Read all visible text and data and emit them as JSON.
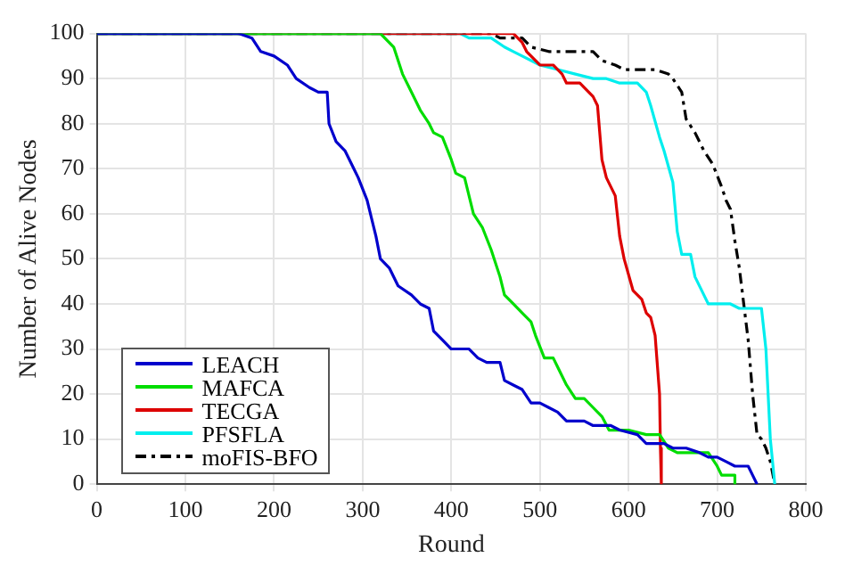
{
  "chart_data": {
    "type": "line",
    "xlabel": "Round",
    "ylabel": "Number of Alive Nodes",
    "xlim": [
      0,
      800
    ],
    "xticks": [
      0,
      100,
      200,
      300,
      400,
      500,
      600,
      700,
      800
    ],
    "ylim": [
      0,
      100
    ],
    "yticks": [
      0,
      10,
      20,
      30,
      40,
      50,
      60,
      70,
      80,
      90,
      100
    ],
    "grid": true,
    "legend": "bottom left",
    "marker": "none",
    "series": [
      {
        "name": "LEACH",
        "color": "#0000cc",
        "line_style": "solid",
        "x": [
          0,
          160,
          175,
          185,
          200,
          215,
          225,
          240,
          250,
          260,
          262,
          270,
          280,
          290,
          295,
          305,
          315,
          320,
          330,
          340,
          355,
          365,
          375,
          380,
          390,
          400,
          420,
          430,
          440,
          455,
          460,
          470,
          480,
          490,
          500,
          510,
          520,
          530,
          550,
          560,
          580,
          590,
          610,
          620,
          640,
          650,
          665,
          680,
          690,
          700,
          710,
          720,
          735,
          740,
          745
        ],
        "values": [
          100,
          100,
          99,
          96,
          95,
          93,
          90,
          88,
          87,
          87,
          80,
          76,
          74,
          70,
          68,
          63,
          55,
          50,
          48,
          44,
          42,
          40,
          39,
          34,
          32,
          30,
          30,
          28,
          27,
          27,
          23,
          22,
          21,
          18,
          18,
          17,
          16,
          14,
          14,
          13,
          13,
          12,
          11,
          9,
          9,
          8,
          8,
          7,
          6,
          6,
          5,
          4,
          4,
          2,
          0
        ]
      },
      {
        "name": "MAFCA",
        "color": "#00dd00",
        "line_style": "solid",
        "x": [
          0,
          320,
          335,
          345,
          355,
          365,
          375,
          380,
          390,
          400,
          405,
          415,
          425,
          435,
          445,
          455,
          460,
          470,
          480,
          490,
          495,
          505,
          515,
          520,
          530,
          540,
          550,
          560,
          570,
          578,
          600,
          620,
          635,
          645,
          655,
          690,
          700,
          705,
          720,
          720
        ],
        "values": [
          100,
          100,
          97,
          91,
          87,
          83,
          80,
          78,
          77,
          72,
          69,
          68,
          60,
          57,
          52,
          46,
          42,
          40,
          38,
          36,
          33,
          28,
          28,
          26,
          22,
          19,
          19,
          17,
          15,
          12,
          12,
          11,
          11,
          8,
          7,
          7,
          4,
          2,
          2,
          0
        ]
      },
      {
        "name": "TECGA",
        "color": "#dd0000",
        "line_style": "solid",
        "x": [
          0,
          470,
          480,
          485,
          495,
          500,
          515,
          525,
          530,
          545,
          560,
          565,
          570,
          575,
          585,
          590,
          595,
          605,
          615,
          620,
          625,
          630,
          635,
          636,
          637
        ],
        "values": [
          100,
          100,
          98,
          96,
          94,
          93,
          93,
          91,
          89,
          89,
          86,
          84,
          72,
          68,
          64,
          55,
          50,
          43,
          41,
          38,
          37,
          33,
          20,
          8,
          0
        ]
      },
      {
        "name": "PFSFLA",
        "color": "#00eeee",
        "line_style": "solid",
        "x": [
          0,
          410,
          420,
          445,
          460,
          470,
          480,
          500,
          520,
          540,
          560,
          575,
          590,
          610,
          620,
          625,
          635,
          640,
          650,
          655,
          660,
          670,
          675,
          685,
          690,
          715,
          725,
          750,
          755,
          760,
          765
        ],
        "values": [
          100,
          100,
          99,
          99,
          97,
          96,
          95,
          93,
          92,
          91,
          90,
          90,
          89,
          89,
          87,
          84,
          77,
          74,
          67,
          56,
          51,
          51,
          46,
          42,
          40,
          40,
          39,
          39,
          30,
          10,
          0
        ]
      },
      {
        "name": "moFIS-BFO",
        "color": "#000000",
        "line_style": "dashed",
        "x": [
          0,
          445,
          455,
          480,
          490,
          510,
          525,
          560,
          570,
          585,
          595,
          630,
          645,
          650,
          660,
          665,
          675,
          685,
          695,
          705,
          710,
          715,
          720,
          725,
          730,
          735,
          740,
          745,
          750,
          755,
          760,
          765
        ],
        "values": [
          100,
          100,
          99,
          99,
          97,
          96,
          96,
          96,
          94,
          93,
          92,
          92,
          91,
          90,
          87,
          81,
          78,
          74,
          71,
          66,
          63,
          61,
          54,
          48,
          40,
          32,
          20,
          11,
          10,
          8,
          5,
          0
        ]
      }
    ]
  }
}
